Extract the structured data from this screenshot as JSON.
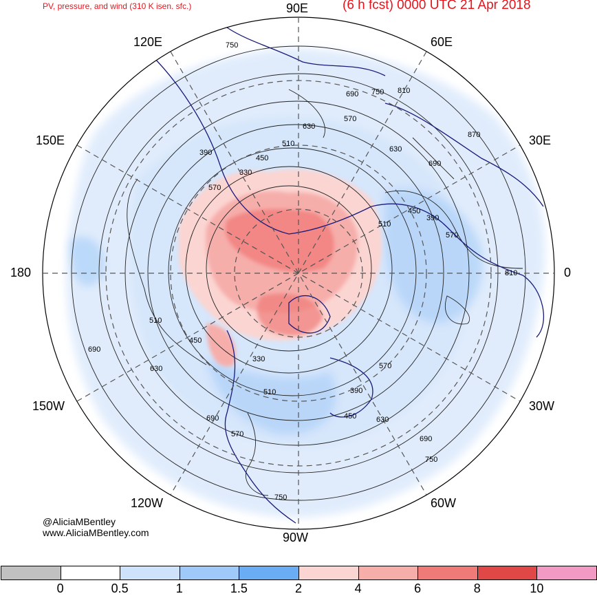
{
  "header": {
    "left_title": "PV, pressure, and wind (310 K isen. sfc.)",
    "right_title": "(6 h fcst) 0000 UTC 21 Apr 2018"
  },
  "longitude_labels": {
    "lon_90e": "90E",
    "lon_120e": "120E",
    "lon_60e": "60E",
    "lon_150e": "150E",
    "lon_30e": "30E",
    "lon_180": "180",
    "lon_0": "0",
    "lon_150w": "150W",
    "lon_30w": "30W",
    "lon_120w": "120W",
    "lon_60w": "60W",
    "lon_90w": "90W"
  },
  "contour_labels": [
    "750",
    "690",
    "750",
    "810",
    "630",
    "570",
    "510",
    "450",
    "390",
    "330",
    "630",
    "690",
    "570",
    "510",
    "450",
    "390",
    "570",
    "810",
    "510",
    "450",
    "690",
    "630",
    "330",
    "570",
    "390",
    "510",
    "690",
    "450",
    "630",
    "690",
    "750",
    "570",
    "750",
    "870"
  ],
  "credits": {
    "handle": "@AliciaMBentley",
    "website": "www.AliciaMBentley.com"
  },
  "colorbar": {
    "colors": [
      "#c0c0c0",
      "#ffffff",
      "#cfe2fb",
      "#9ec9f8",
      "#6aadf5",
      "#fbd5d2",
      "#f6aeab",
      "#f07a78",
      "#e04848",
      "#f39ac4"
    ],
    "tick_labels": [
      "0",
      "0.5",
      "1",
      "1.5",
      "2",
      "4",
      "6",
      "8",
      "10"
    ]
  },
  "map_colors": {
    "ocean_bg": "#ffffff",
    "pv_low": "#cfe2fb",
    "pv_mid": "#9ec9f8",
    "pv_high_pink": "#f6aeab",
    "pv_high_red": "#f07a78",
    "coast": "#1a1a7a",
    "contour": "#222222",
    "grid": "#555555"
  }
}
